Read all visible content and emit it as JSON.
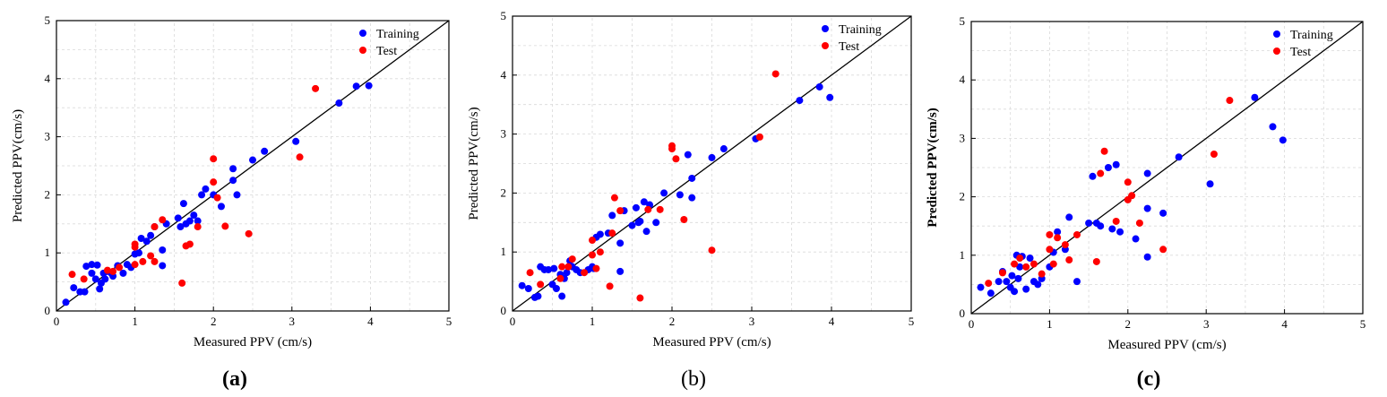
{
  "chart_data": [
    {
      "type": "scatter",
      "panel_label": "(a)",
      "xlabel": "Measured PPV (cm/s)",
      "ylabel": "Predicted PPV(cm/s)",
      "xlim": [
        0,
        5
      ],
      "ylim": [
        0,
        5
      ],
      "x_ticks": [
        "0",
        "1",
        "2",
        "3",
        "4",
        "5"
      ],
      "y_ticks": [
        "0",
        "1",
        "2",
        "3",
        "4",
        "5"
      ],
      "grid": true,
      "legend_position": "top-right",
      "reference_line": [
        [
          0,
          0
        ],
        [
          5,
          5
        ]
      ],
      "series": [
        {
          "name": "Training",
          "color": "#0000ff",
          "points": [
            [
              0.12,
              0.15
            ],
            [
              0.22,
              0.4
            ],
            [
              0.3,
              0.33
            ],
            [
              0.36,
              0.33
            ],
            [
              0.38,
              0.77
            ],
            [
              0.45,
              0.65
            ],
            [
              0.45,
              0.8
            ],
            [
              0.5,
              0.55
            ],
            [
              0.52,
              0.79
            ],
            [
              0.55,
              0.38
            ],
            [
              0.57,
              0.48
            ],
            [
              0.6,
              0.65
            ],
            [
              0.62,
              0.55
            ],
            [
              0.65,
              0.68
            ],
            [
              0.7,
              0.65
            ],
            [
              0.72,
              0.6
            ],
            [
              0.78,
              0.78
            ],
            [
              0.85,
              0.65
            ],
            [
              0.9,
              0.8
            ],
            [
              0.95,
              0.75
            ],
            [
              1.0,
              0.98
            ],
            [
              1.05,
              1.0
            ],
            [
              1.08,
              1.25
            ],
            [
              1.15,
              1.2
            ],
            [
              1.2,
              1.3
            ],
            [
              1.25,
              1.45
            ],
            [
              1.35,
              1.05
            ],
            [
              1.35,
              0.78
            ],
            [
              1.4,
              1.5
            ],
            [
              1.55,
              1.6
            ],
            [
              1.58,
              1.45
            ],
            [
              1.62,
              1.85
            ],
            [
              1.65,
              1.5
            ],
            [
              1.7,
              1.55
            ],
            [
              1.75,
              1.65
            ],
            [
              1.8,
              1.55
            ],
            [
              1.85,
              2.0
            ],
            [
              1.9,
              2.1
            ],
            [
              2.0,
              2.0
            ],
            [
              2.1,
              1.8
            ],
            [
              2.25,
              2.45
            ],
            [
              2.25,
              2.25
            ],
            [
              2.3,
              2.0
            ],
            [
              2.5,
              2.6
            ],
            [
              2.65,
              2.75
            ],
            [
              3.05,
              2.92
            ],
            [
              3.6,
              3.58
            ],
            [
              3.82,
              3.87
            ],
            [
              3.98,
              3.88
            ]
          ]
        },
        {
          "name": "Test",
          "color": "#ff0000",
          "points": [
            [
              0.2,
              0.63
            ],
            [
              0.35,
              0.55
            ],
            [
              0.65,
              0.7
            ],
            [
              0.72,
              0.68
            ],
            [
              0.8,
              0.75
            ],
            [
              1.0,
              1.1
            ],
            [
              1.0,
              0.8
            ],
            [
              1.0,
              1.15
            ],
            [
              1.1,
              0.85
            ],
            [
              1.2,
              0.95
            ],
            [
              1.25,
              0.85
            ],
            [
              1.25,
              1.45
            ],
            [
              1.35,
              1.57
            ],
            [
              1.6,
              0.48
            ],
            [
              1.65,
              1.12
            ],
            [
              1.7,
              1.15
            ],
            [
              1.8,
              1.45
            ],
            [
              2.0,
              2.62
            ],
            [
              2.0,
              2.22
            ],
            [
              2.05,
              1.95
            ],
            [
              2.15,
              1.46
            ],
            [
              2.45,
              1.33
            ],
            [
              3.1,
              2.65
            ],
            [
              3.3,
              3.83
            ]
          ]
        }
      ]
    },
    {
      "type": "scatter",
      "panel_label": "(b)",
      "xlabel": "Measured PPV (cm/s)",
      "ylabel": "Predicted PPV(cm/s)",
      "xlim": [
        0,
        5
      ],
      "ylim": [
        0,
        5
      ],
      "x_ticks": [
        "0",
        "1",
        "2",
        "3",
        "4",
        "5"
      ],
      "y_ticks": [
        "0",
        "1",
        "2",
        "3",
        "4",
        "5"
      ],
      "grid": true,
      "legend_position": "top-right",
      "reference_line": [
        [
          0,
          0
        ],
        [
          5,
          5
        ]
      ],
      "series": [
        {
          "name": "Training",
          "color": "#0000ff",
          "points": [
            [
              0.12,
              0.43
            ],
            [
              0.2,
              0.38
            ],
            [
              0.28,
              0.23
            ],
            [
              0.32,
              0.25
            ],
            [
              0.35,
              0.75
            ],
            [
              0.4,
              0.7
            ],
            [
              0.45,
              0.7
            ],
            [
              0.5,
              0.45
            ],
            [
              0.52,
              0.72
            ],
            [
              0.55,
              0.38
            ],
            [
              0.6,
              0.62
            ],
            [
              0.62,
              0.25
            ],
            [
              0.65,
              0.55
            ],
            [
              0.68,
              0.65
            ],
            [
              0.72,
              0.85
            ],
            [
              0.75,
              0.75
            ],
            [
              0.8,
              0.7
            ],
            [
              0.85,
              0.65
            ],
            [
              0.95,
              0.7
            ],
            [
              1.0,
              0.75
            ],
            [
              1.02,
              0.72
            ],
            [
              1.05,
              1.25
            ],
            [
              1.1,
              1.3
            ],
            [
              1.2,
              1.32
            ],
            [
              1.25,
              1.62
            ],
            [
              1.35,
              1.15
            ],
            [
              1.35,
              0.67
            ],
            [
              1.4,
              1.7
            ],
            [
              1.5,
              1.45
            ],
            [
              1.55,
              1.75
            ],
            [
              1.58,
              1.5
            ],
            [
              1.6,
              1.52
            ],
            [
              1.65,
              1.85
            ],
            [
              1.68,
              1.35
            ],
            [
              1.72,
              1.8
            ],
            [
              1.8,
              1.5
            ],
            [
              1.9,
              2.0
            ],
            [
              2.1,
              1.97
            ],
            [
              2.2,
              2.65
            ],
            [
              2.25,
              2.25
            ],
            [
              2.25,
              1.92
            ],
            [
              2.5,
              2.6
            ],
            [
              2.65,
              2.75
            ],
            [
              3.05,
              2.92
            ],
            [
              3.6,
              3.57
            ],
            [
              3.85,
              3.8
            ],
            [
              3.98,
              3.62
            ]
          ]
        },
        {
          "name": "Test",
          "color": "#ff0000",
          "points": [
            [
              0.22,
              0.65
            ],
            [
              0.35,
              0.45
            ],
            [
              0.6,
              0.55
            ],
            [
              0.62,
              0.75
            ],
            [
              0.7,
              0.75
            ],
            [
              0.75,
              0.88
            ],
            [
              0.9,
              0.65
            ],
            [
              1.0,
              0.95
            ],
            [
              1.0,
              1.2
            ],
            [
              1.05,
              0.72
            ],
            [
              1.1,
              1.0
            ],
            [
              1.22,
              0.42
            ],
            [
              1.25,
              1.32
            ],
            [
              1.28,
              1.92
            ],
            [
              1.35,
              1.7
            ],
            [
              1.6,
              0.22
            ],
            [
              1.7,
              1.72
            ],
            [
              1.85,
              1.72
            ],
            [
              2.0,
              2.75
            ],
            [
              2.0,
              2.8
            ],
            [
              2.05,
              2.58
            ],
            [
              2.15,
              1.55
            ],
            [
              2.5,
              1.03
            ],
            [
              3.1,
              2.95
            ],
            [
              3.3,
              4.02
            ]
          ]
        }
      ]
    },
    {
      "type": "scatter",
      "panel_label": "(c)",
      "xlabel": "Measured PPV (cm/s)",
      "ylabel": "Predicted PPV(cm/s)",
      "xlim": [
        0,
        5
      ],
      "ylim": [
        0,
        5
      ],
      "x_ticks": [
        "0",
        "1",
        "2",
        "3",
        "4",
        "5"
      ],
      "y_ticks": [
        "0",
        "1",
        "2",
        "3",
        "4",
        "5"
      ],
      "grid": true,
      "legend_position": "top-right",
      "reference_line": [
        [
          0,
          0
        ],
        [
          5,
          5
        ]
      ],
      "series": [
        {
          "name": "Training",
          "color": "#0000ff",
          "points": [
            [
              0.12,
              0.45
            ],
            [
              0.25,
              0.35
            ],
            [
              0.35,
              0.55
            ],
            [
              0.4,
              0.72
            ],
            [
              0.45,
              0.55
            ],
            [
              0.5,
              0.45
            ],
            [
              0.52,
              0.65
            ],
            [
              0.55,
              0.38
            ],
            [
              0.58,
              1.0
            ],
            [
              0.6,
              0.6
            ],
            [
              0.62,
              0.8
            ],
            [
              0.65,
              0.98
            ],
            [
              0.7,
              0.42
            ],
            [
              0.75,
              0.95
            ],
            [
              0.8,
              0.55
            ],
            [
              0.85,
              0.5
            ],
            [
              0.9,
              0.6
            ],
            [
              1.0,
              0.8
            ],
            [
              1.05,
              1.05
            ],
            [
              1.1,
              1.4
            ],
            [
              1.2,
              1.1
            ],
            [
              1.25,
              1.65
            ],
            [
              1.35,
              0.55
            ],
            [
              1.5,
              1.55
            ],
            [
              1.55,
              2.35
            ],
            [
              1.6,
              1.55
            ],
            [
              1.65,
              1.5
            ],
            [
              1.75,
              2.5
            ],
            [
              1.8,
              1.45
            ],
            [
              1.85,
              2.55
            ],
            [
              1.9,
              1.4
            ],
            [
              2.1,
              1.28
            ],
            [
              2.25,
              1.8
            ],
            [
              2.25,
              2.4
            ],
            [
              2.25,
              0.97
            ],
            [
              2.45,
              1.72
            ],
            [
              2.65,
              2.68
            ],
            [
              3.05,
              2.22
            ],
            [
              3.62,
              3.7
            ],
            [
              3.85,
              3.2
            ],
            [
              3.98,
              2.97
            ]
          ]
        },
        {
          "name": "Test",
          "color": "#ff0000",
          "points": [
            [
              0.22,
              0.52
            ],
            [
              0.4,
              0.7
            ],
            [
              0.55,
              0.85
            ],
            [
              0.62,
              0.95
            ],
            [
              0.7,
              0.8
            ],
            [
              0.8,
              0.85
            ],
            [
              0.9,
              0.68
            ],
            [
              1.0,
              1.1
            ],
            [
              1.0,
              1.35
            ],
            [
              1.05,
              0.85
            ],
            [
              1.1,
              1.3
            ],
            [
              1.2,
              1.18
            ],
            [
              1.25,
              0.92
            ],
            [
              1.35,
              1.35
            ],
            [
              1.6,
              0.89
            ],
            [
              1.65,
              2.4
            ],
            [
              1.7,
              2.78
            ],
            [
              1.85,
              1.58
            ],
            [
              2.0,
              2.25
            ],
            [
              2.0,
              1.95
            ],
            [
              2.05,
              2.02
            ],
            [
              2.15,
              1.55
            ],
            [
              2.45,
              1.1
            ],
            [
              3.1,
              2.73
            ],
            [
              3.3,
              3.65
            ]
          ]
        }
      ]
    }
  ]
}
